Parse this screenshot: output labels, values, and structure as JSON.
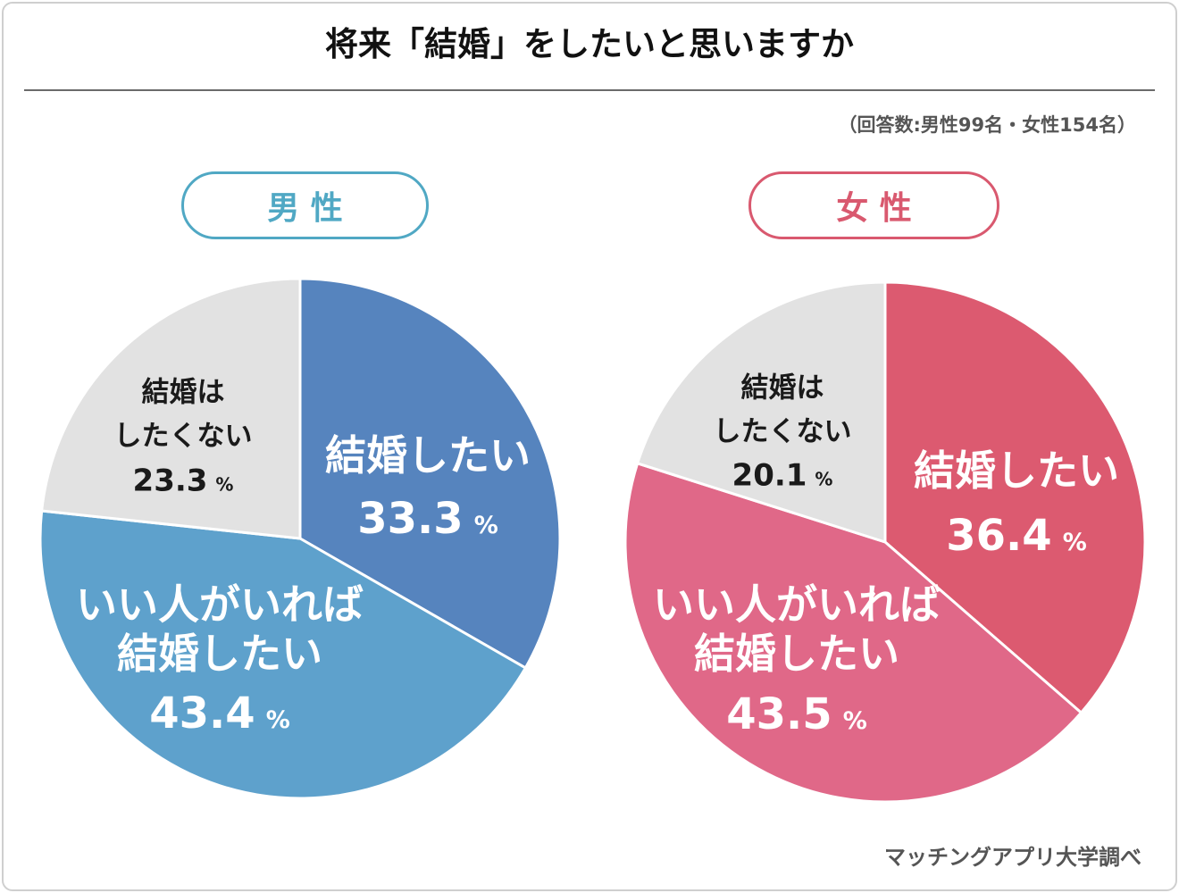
{
  "title": "将来「結婚」をしたいと思いますか",
  "respondents_note": "（回答数:男性99名・女性154名）",
  "source": "マッチングアプリ大学調べ",
  "chart_data": [
    {
      "type": "pie",
      "title": "男 性",
      "unit": "%",
      "accent_color": "#50A8C4",
      "slices": [
        {
          "label_lines": [
            "結婚したい"
          ],
          "value": 33.3,
          "color": "#5684BE",
          "label_color": "#FFFFFF"
        },
        {
          "label_lines": [
            "いい人がいれば",
            "結婚したい"
          ],
          "value": 43.4,
          "color": "#5EA1CC",
          "label_color": "#FFFFFF"
        },
        {
          "label_lines": [
            "結婚は",
            "したくない"
          ],
          "value": 23.3,
          "color": "#E2E2E2",
          "label_color": "#1A1A1A"
        }
      ]
    },
    {
      "type": "pie",
      "title": "女 性",
      "unit": "%",
      "accent_color": "#D9596F",
      "slices": [
        {
          "label_lines": [
            "結婚したい"
          ],
          "value": 36.4,
          "color": "#DC5A70",
          "label_color": "#FFFFFF"
        },
        {
          "label_lines": [
            "いい人がいれば",
            "結婚したい"
          ],
          "value": 43.5,
          "color": "#E06888",
          "label_color": "#FFFFFF"
        },
        {
          "label_lines": [
            "結婚は",
            "したくない"
          ],
          "value": 20.1,
          "color": "#E2E2E2",
          "label_color": "#1A1A1A"
        }
      ]
    }
  ]
}
